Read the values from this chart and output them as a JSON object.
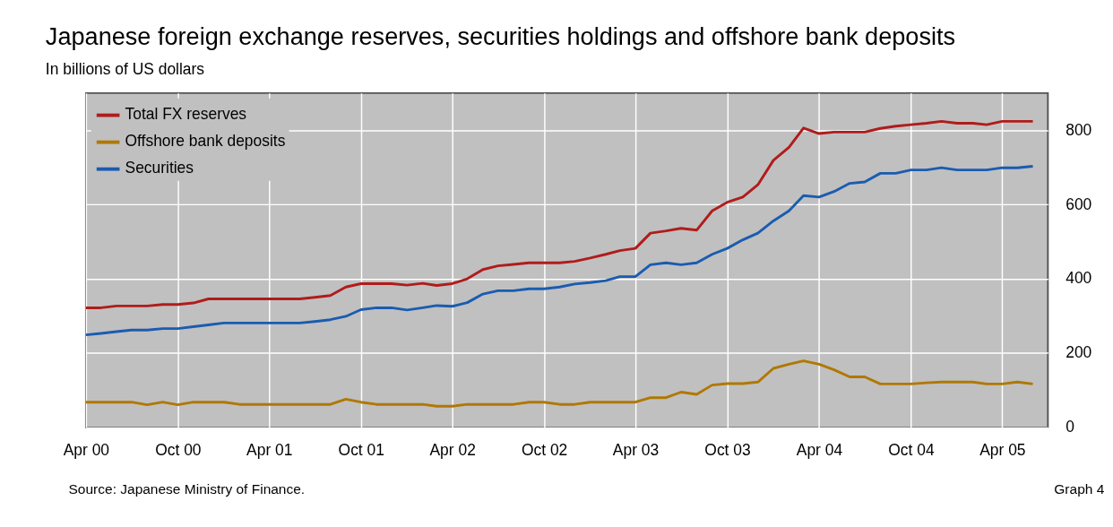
{
  "chart_data": {
    "type": "line",
    "title": "Japanese foreign exchange reserves, securities holdings and offshore bank deposits",
    "subtitle": "In billions of US dollars",
    "x": [
      "2000-04",
      "2000-05",
      "2000-06",
      "2000-07",
      "2000-08",
      "2000-09",
      "2000-10",
      "2000-11",
      "2000-12",
      "2001-01",
      "2001-02",
      "2001-03",
      "2001-04",
      "2001-05",
      "2001-06",
      "2001-07",
      "2001-08",
      "2001-09",
      "2001-10",
      "2001-11",
      "2001-12",
      "2002-01",
      "2002-02",
      "2002-03",
      "2002-04",
      "2002-05",
      "2002-06",
      "2002-07",
      "2002-08",
      "2002-09",
      "2002-10",
      "2002-11",
      "2002-12",
      "2003-01",
      "2003-02",
      "2003-03",
      "2003-04",
      "2003-05",
      "2003-06",
      "2003-07",
      "2003-08",
      "2003-09",
      "2003-10",
      "2003-11",
      "2003-12",
      "2004-01",
      "2004-02",
      "2004-03",
      "2004-04",
      "2004-05",
      "2004-06",
      "2004-07",
      "2004-08",
      "2004-09",
      "2004-10",
      "2004-11",
      "2004-12",
      "2005-01",
      "2005-02",
      "2005-03",
      "2005-04",
      "2005-05",
      "2005-06"
    ],
    "series": [
      {
        "name": "Total FX reserves",
        "color": "#b01c1c",
        "values": [
          322,
          322,
          327,
          327,
          327,
          331,
          331,
          335,
          346,
          346,
          346,
          346,
          346,
          346,
          346,
          350,
          355,
          378,
          387,
          387,
          387,
          383,
          388,
          382,
          387,
          400,
          425,
          435,
          439,
          443,
          443,
          443,
          447,
          456,
          466,
          476,
          482,
          523,
          529,
          536,
          531,
          583,
          606,
          620,
          653,
          719,
          754,
          806,
          791,
          795,
          795,
          795,
          805,
          811,
          815,
          819,
          824,
          819,
          819,
          815,
          824,
          824,
          824
        ]
      },
      {
        "name": "Offshore bank deposits",
        "color": "#b07800",
        "values": [
          68,
          68,
          68,
          68,
          61,
          68,
          61,
          68,
          68,
          68,
          62,
          62,
          62,
          62,
          62,
          62,
          62,
          76,
          68,
          62,
          62,
          62,
          62,
          57,
          57,
          62,
          62,
          62,
          62,
          68,
          68,
          62,
          62,
          68,
          68,
          68,
          68,
          80,
          80,
          95,
          89,
          114,
          118,
          118,
          122,
          159,
          170,
          179,
          170,
          155,
          136,
          136,
          117,
          117,
          117,
          120,
          122,
          122,
          122,
          117,
          117,
          122,
          117
        ]
      },
      {
        "name": "Securities",
        "color": "#1a5cb0",
        "values": [
          249,
          253,
          258,
          262,
          262,
          266,
          266,
          271,
          276,
          281,
          281,
          281,
          281,
          281,
          281,
          285,
          290,
          299,
          317,
          322,
          322,
          316,
          322,
          328,
          326,
          336,
          359,
          368,
          368,
          373,
          373,
          378,
          386,
          390,
          395,
          406,
          406,
          438,
          443,
          438,
          443,
          466,
          482,
          505,
          523,
          556,
          583,
          624,
          620,
          635,
          657,
          661,
          684,
          684,
          693,
          693,
          699,
          693,
          693,
          693,
          699,
          699,
          703
        ]
      }
    ],
    "xlim": [
      "2000-04",
      "2005-07"
    ],
    "xticks": [
      {
        "value": "2000-04",
        "label": "Apr 00"
      },
      {
        "value": "2000-10",
        "label": "Oct 00"
      },
      {
        "value": "2001-04",
        "label": "Apr 01"
      },
      {
        "value": "2001-10",
        "label": "Oct 01"
      },
      {
        "value": "2002-04",
        "label": "Apr 02"
      },
      {
        "value": "2002-10",
        "label": "Oct 02"
      },
      {
        "value": "2003-04",
        "label": "Apr 03"
      },
      {
        "value": "2003-10",
        "label": "Oct 03"
      },
      {
        "value": "2004-04",
        "label": "Apr 04"
      },
      {
        "value": "2004-10",
        "label": "Oct 04"
      },
      {
        "value": "2005-04",
        "label": "Apr 05"
      }
    ],
    "ylim": [
      0,
      900
    ],
    "yticks": [
      0,
      200,
      400,
      600,
      800
    ],
    "grid": true,
    "legend": "top left",
    "marker": "none",
    "line_style": "solid",
    "annotations": [
      "Source: Japanese Ministry of Finance.",
      "Graph 4"
    ]
  }
}
